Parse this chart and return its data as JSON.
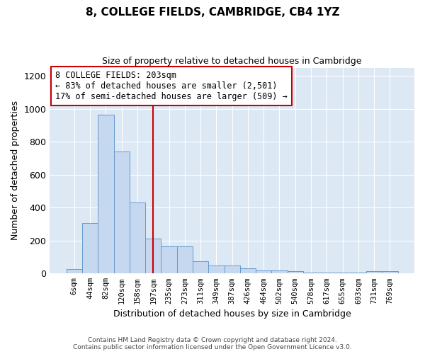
{
  "title": "8, COLLEGE FIELDS, CAMBRIDGE, CB4 1YZ",
  "subtitle": "Size of property relative to detached houses in Cambridge",
  "xlabel": "Distribution of detached houses by size in Cambridge",
  "ylabel": "Number of detached properties",
  "footer_line1": "Contains HM Land Registry data © Crown copyright and database right 2024.",
  "footer_line2": "Contains public sector information licensed under the Open Government Licence v3.0.",
  "bar_color": "#c5d8ef",
  "bar_edge_color": "#6699cc",
  "bg_color": "#dde8f5",
  "vline_color": "#cc0000",
  "vline_index": 5,
  "annotation_text": "8 COLLEGE FIELDS: 203sqm\n← 83% of detached houses are smaller (2,501)\n17% of semi-detached houses are larger (509) →",
  "annotation_box_edgecolor": "#cc0000",
  "categories": [
    "6sqm",
    "44sqm",
    "82sqm",
    "120sqm",
    "158sqm",
    "197sqm",
    "235sqm",
    "273sqm",
    "311sqm",
    "349sqm",
    "387sqm",
    "426sqm",
    "464sqm",
    "502sqm",
    "540sqm",
    "578sqm",
    "617sqm",
    "655sqm",
    "693sqm",
    "731sqm",
    "769sqm"
  ],
  "values": [
    25,
    305,
    965,
    740,
    430,
    210,
    165,
    165,
    75,
    50,
    50,
    30,
    20,
    20,
    15,
    5,
    5,
    5,
    5,
    15,
    15
  ],
  "ylim": [
    0,
    1250
  ],
  "yticks": [
    0,
    200,
    400,
    600,
    800,
    1000,
    1200
  ],
  "figsize": [
    6.0,
    5.0
  ],
  "dpi": 100
}
